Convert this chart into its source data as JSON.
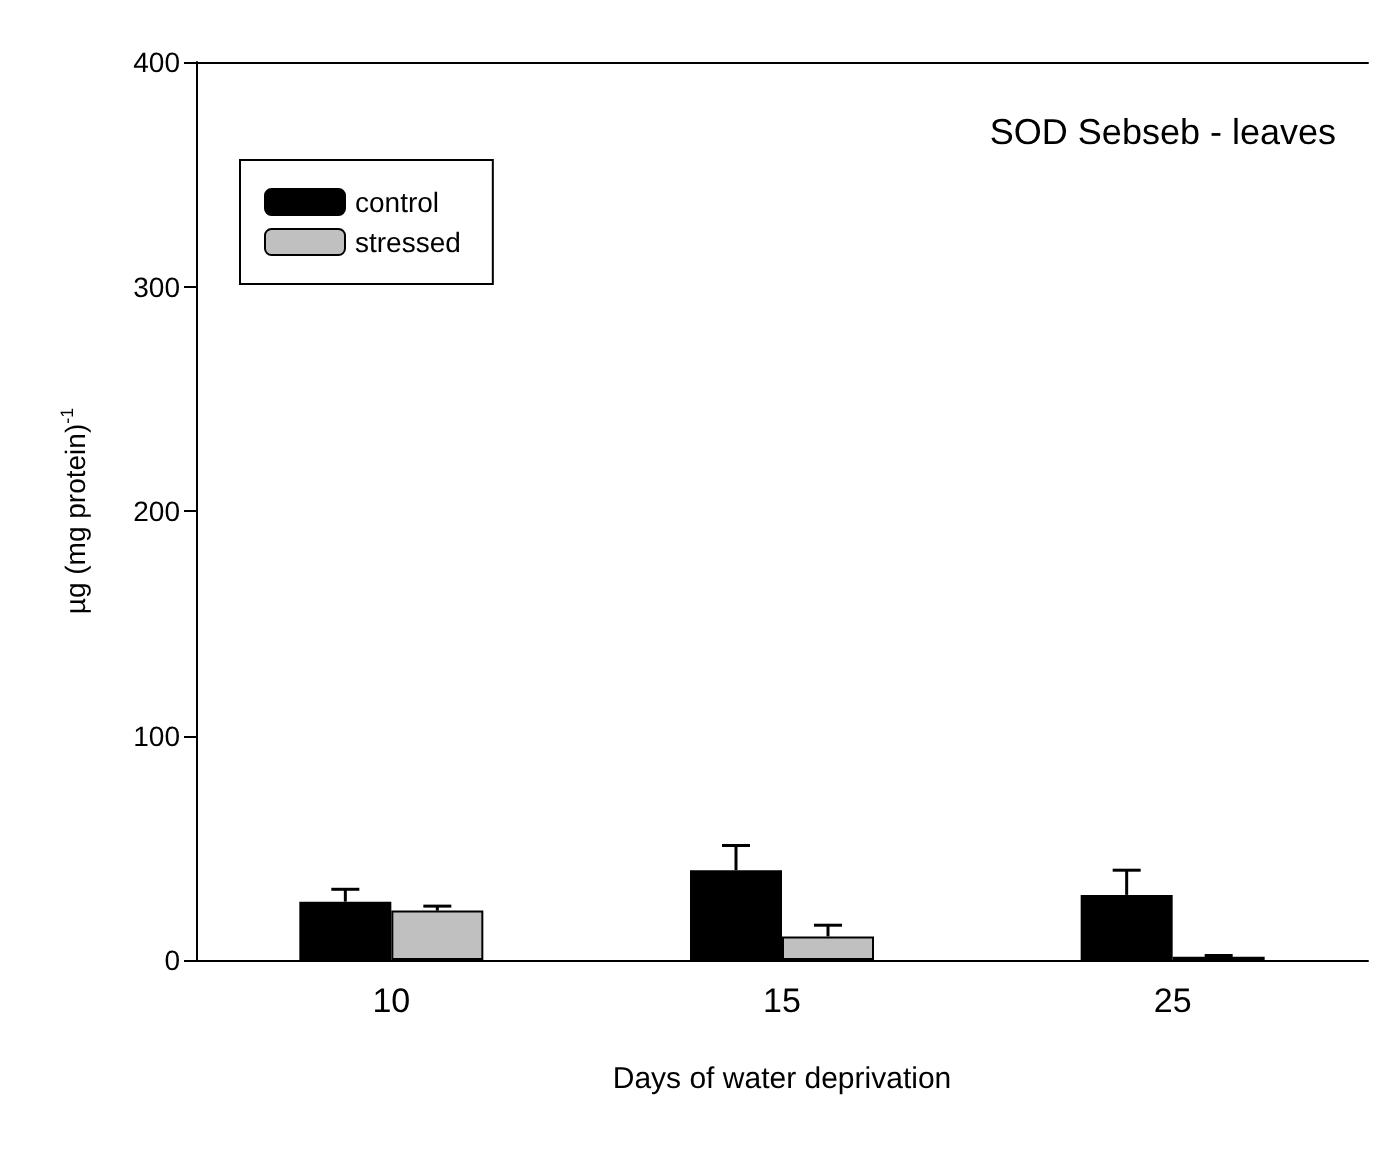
{
  "chart_data": {
    "type": "bar",
    "title": "SOD Sebseb - leaves",
    "xlabel": "Days of water deprivation",
    "ylabel": "µg (mg protein)$^{-1}$",
    "categories": [
      "10",
      "15",
      "25"
    ],
    "series": [
      {
        "name": "control",
        "color": "#000000",
        "values": [
          26,
          40,
          29
        ],
        "errors": [
          5.5,
          11,
          11
        ]
      },
      {
        "name": "stressed",
        "color": "#c0c0c0",
        "values": [
          22,
          10.5,
          1.5
        ],
        "errors": [
          2,
          5,
          0.5
        ]
      }
    ],
    "ylim": [
      0,
      400
    ],
    "yticks": [
      0,
      100,
      200,
      300,
      400
    ],
    "grid": false,
    "legend": "top left"
  }
}
